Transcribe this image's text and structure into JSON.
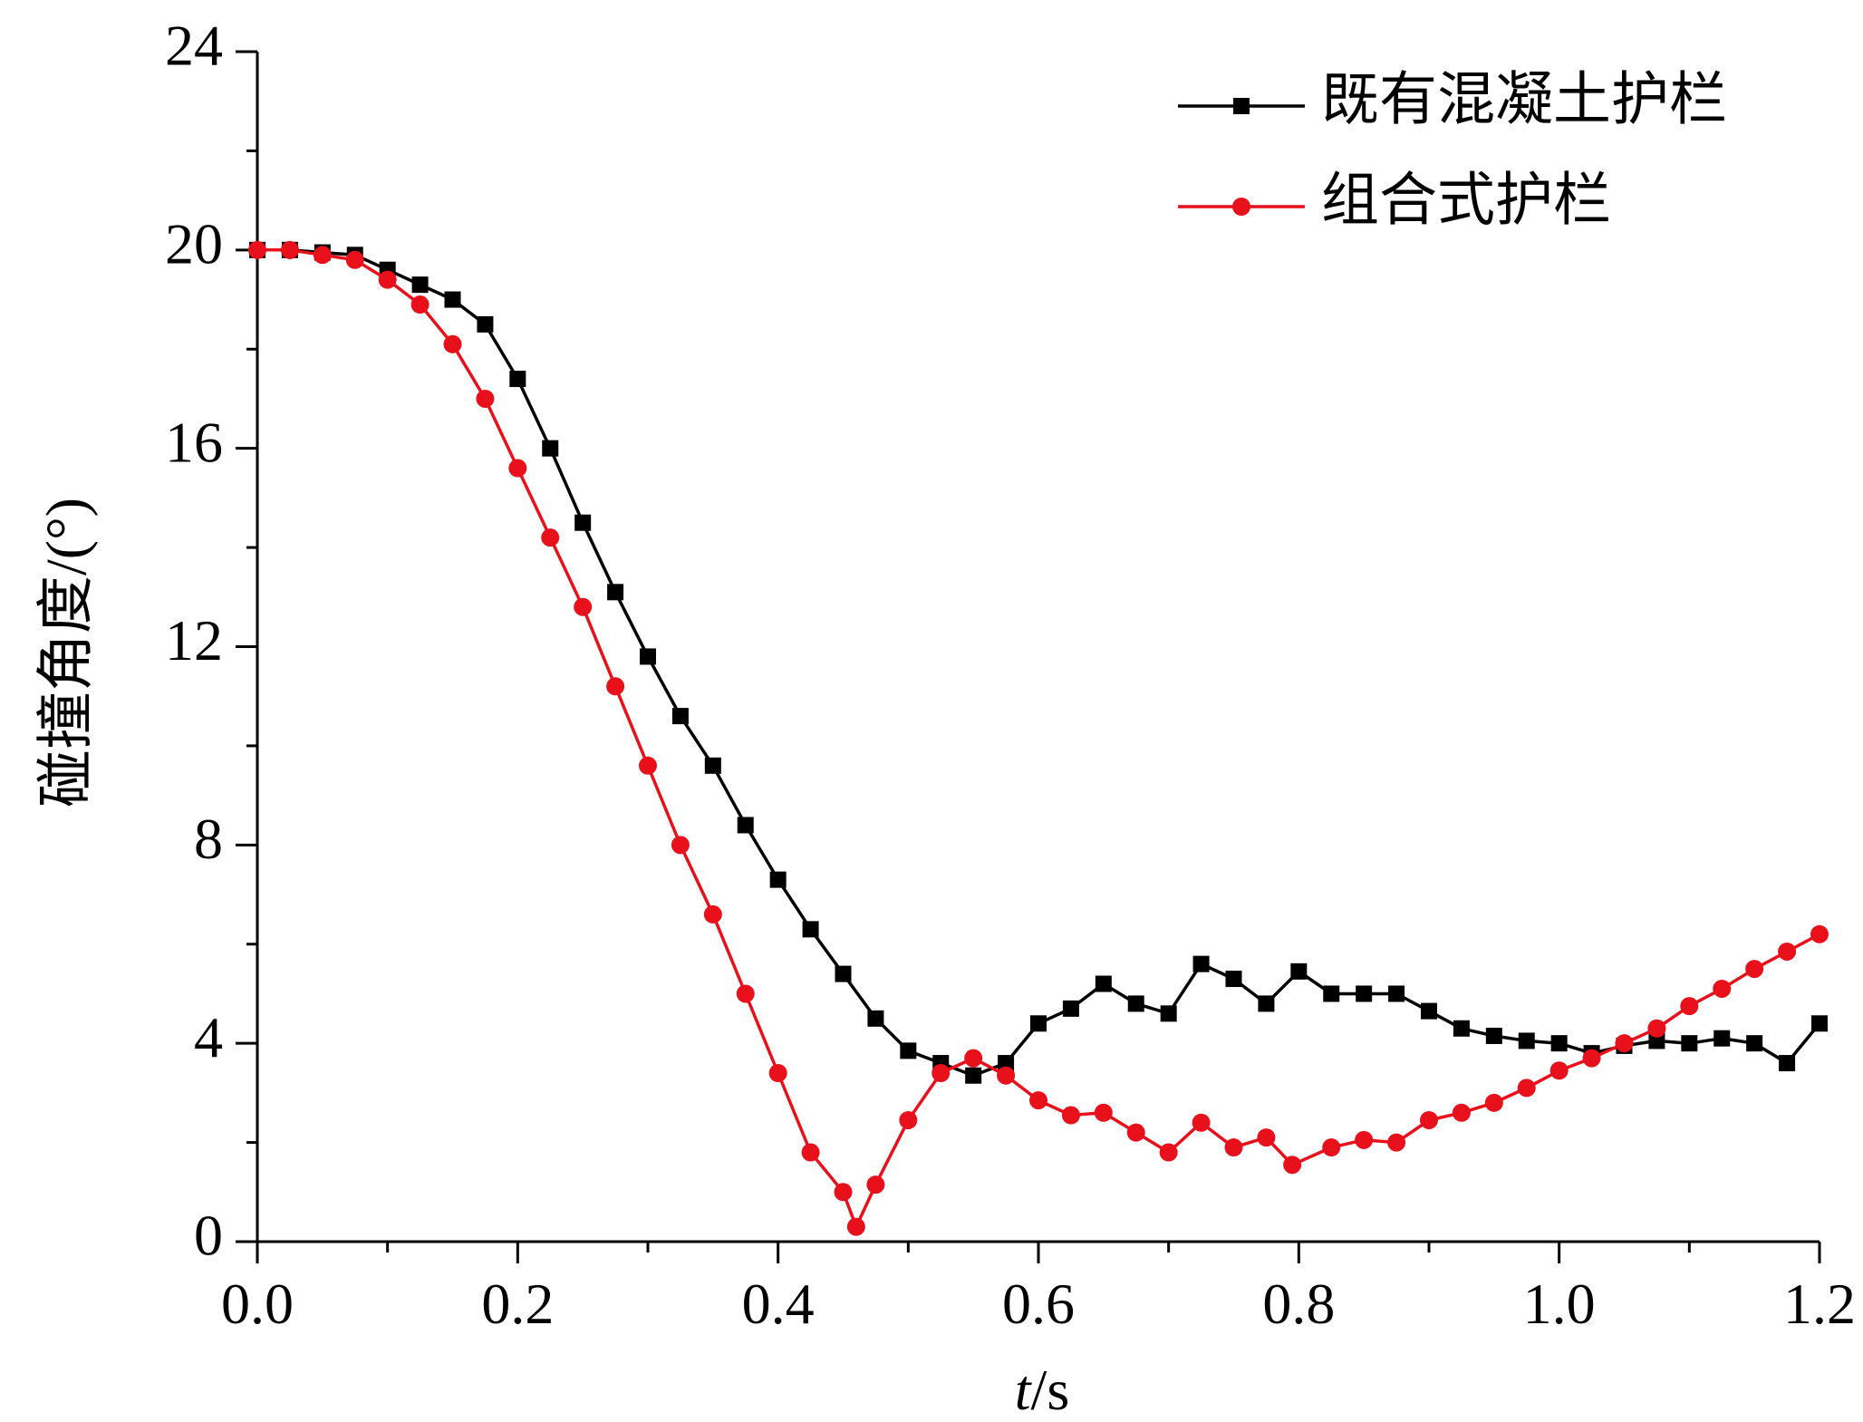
{
  "chart_data": {
    "type": "line",
    "xlabel_var": "t",
    "xlabel_unit": "/s",
    "ylabel": "碰撞角度/(°)",
    "xlim": [
      0.0,
      1.2
    ],
    "ylim": [
      0,
      24
    ],
    "x_ticks": [
      "0.0",
      "0.2",
      "0.4",
      "0.6",
      "0.8",
      "1.0",
      "1.2"
    ],
    "y_ticks": [
      "0",
      "4",
      "8",
      "12",
      "16",
      "20",
      "24"
    ],
    "grid": false,
    "legend_position": "top-right",
    "series": [
      {
        "name": "既有混凝土护栏",
        "color": "#000000",
        "marker": "square",
        "x": [
          0.0,
          0.025,
          0.05,
          0.075,
          0.1,
          0.125,
          0.15,
          0.175,
          0.2,
          0.225,
          0.25,
          0.275,
          0.3,
          0.325,
          0.35,
          0.375,
          0.4,
          0.425,
          0.45,
          0.475,
          0.5,
          0.525,
          0.55,
          0.575,
          0.6,
          0.625,
          0.65,
          0.675,
          0.7,
          0.725,
          0.75,
          0.775,
          0.8,
          0.825,
          0.85,
          0.875,
          0.9,
          0.925,
          0.95,
          0.975,
          1.0,
          1.025,
          1.05,
          1.075,
          1.1,
          1.125,
          1.15,
          1.175,
          1.2
        ],
        "y": [
          20.0,
          20.0,
          19.95,
          19.9,
          19.6,
          19.3,
          19.0,
          18.5,
          17.4,
          16.0,
          14.5,
          13.1,
          11.8,
          10.6,
          9.6,
          8.4,
          7.3,
          6.3,
          5.4,
          4.5,
          3.85,
          3.6,
          3.35,
          3.6,
          4.4,
          4.7,
          5.2,
          4.8,
          4.6,
          5.6,
          5.3,
          4.8,
          5.45,
          5.0,
          5.0,
          5.0,
          4.65,
          4.3,
          4.15,
          4.05,
          4.0,
          3.8,
          3.95,
          4.05,
          4.0,
          4.1,
          4.0,
          3.6,
          4.4
        ]
      },
      {
        "name": "组合式护栏",
        "color": "#e8101b",
        "marker": "circle",
        "x": [
          0.0,
          0.025,
          0.05,
          0.075,
          0.1,
          0.125,
          0.15,
          0.175,
          0.2,
          0.225,
          0.25,
          0.275,
          0.3,
          0.325,
          0.35,
          0.375,
          0.4,
          0.425,
          0.45,
          0.46,
          0.475,
          0.5,
          0.525,
          0.55,
          0.575,
          0.6,
          0.625,
          0.65,
          0.675,
          0.7,
          0.725,
          0.75,
          0.775,
          0.795,
          0.825,
          0.85,
          0.875,
          0.9,
          0.925,
          0.95,
          0.975,
          1.0,
          1.025,
          1.05,
          1.075,
          1.1,
          1.125,
          1.15,
          1.175,
          1.2
        ],
        "y": [
          20.0,
          20.0,
          19.9,
          19.8,
          19.4,
          18.9,
          18.1,
          17.0,
          15.6,
          14.2,
          12.8,
          11.2,
          9.6,
          8.0,
          6.6,
          5.0,
          3.4,
          1.8,
          1.0,
          0.3,
          1.15,
          2.45,
          3.4,
          3.7,
          3.35,
          2.85,
          2.55,
          2.6,
          2.2,
          1.8,
          2.4,
          1.9,
          2.1,
          1.55,
          1.9,
          2.05,
          2.0,
          2.45,
          2.6,
          2.8,
          3.1,
          3.45,
          3.7,
          4.0,
          4.3,
          4.75,
          5.1,
          5.5,
          5.85,
          6.2
        ]
      }
    ]
  }
}
